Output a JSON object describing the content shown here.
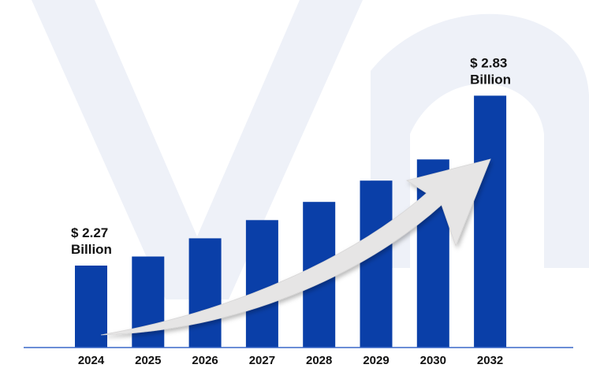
{
  "chart_data": {
    "type": "bar",
    "categories": [
      "2024",
      "2025",
      "2026",
      "2027",
      "2028",
      "2029",
      "2030",
      "2032"
    ],
    "values": [
      2.27,
      2.3,
      2.36,
      2.42,
      2.48,
      2.55,
      2.62,
      2.83
    ],
    "ylim": [
      2.0,
      2.87
    ],
    "annotations": [
      {
        "category": "2024",
        "line1": "$ 2.27",
        "line2": "Billion"
      },
      {
        "category": "2032",
        "line1": "$ 2.83",
        "line2": "Billion"
      }
    ],
    "grid": false,
    "legend": "none"
  },
  "colors": {
    "bar": "#0a3fa8",
    "baseline": "#3a69c9",
    "text": "#111111",
    "watermark": "#eef1f8",
    "arrow": "#e6e5e5"
  },
  "decorations": {
    "watermark": "faint-logo-letterform",
    "arrow": "upward-trend-arrow"
  }
}
